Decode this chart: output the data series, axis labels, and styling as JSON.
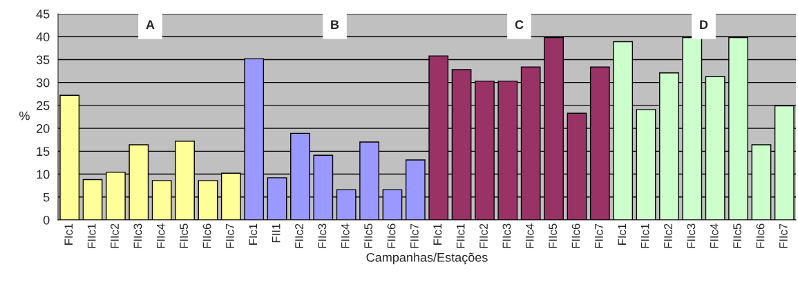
{
  "chart_data": {
    "type": "bar",
    "ylabel": "%",
    "xlabel": "Campanhas/Estações",
    "categories": [
      "FIc1",
      "FIIc1",
      "FIIc2",
      "FIIc3",
      "FIIc4",
      "FIIc5",
      "FIIc6",
      "FIIc7",
      "FIc1",
      "FII1",
      "FIIc2",
      "FIIc3",
      "FIIc4",
      "FIIc5",
      "FIIc6",
      "FIIc7",
      "FIc1",
      "FIIc1",
      "FIIc2",
      "FIIc3",
      "FIIc4",
      "FIIc5",
      "FIIc6",
      "FIIc7",
      "FIc1",
      "FIIc1",
      "FIIc2",
      "FIIc3",
      "FIIc4",
      "FIIc5",
      "FIIc6",
      "FIIc7"
    ],
    "values": [
      27.2,
      8.8,
      10.4,
      16.4,
      8.6,
      17.2,
      8.6,
      10.2,
      35.2,
      9.2,
      18.9,
      14.1,
      6.6,
      17.0,
      6.6,
      13.1,
      35.8,
      32.8,
      30.3,
      30.3,
      33.4,
      39.8,
      23.3,
      33.4,
      38.9,
      24.1,
      32.1,
      39.8,
      31.3,
      39.8,
      16.4,
      24.9
    ],
    "colors": [
      "#ffff99",
      "#ffff99",
      "#ffff99",
      "#ffff99",
      "#ffff99",
      "#ffff99",
      "#ffff99",
      "#ffff99",
      "#9999ff",
      "#9999ff",
      "#9999ff",
      "#9999ff",
      "#9999ff",
      "#9999ff",
      "#9999ff",
      "#9999ff",
      "#993366",
      "#993366",
      "#993366",
      "#993366",
      "#993366",
      "#993366",
      "#993366",
      "#993366",
      "#ccffcc",
      "#ccffcc",
      "#ccffcc",
      "#ccffcc",
      "#ccffcc",
      "#ccffcc",
      "#ccffcc",
      "#ccffcc"
    ],
    "annotations": [
      "A",
      "B",
      "C",
      "D"
    ],
    "ylim": [
      0,
      45
    ],
    "yticks": [
      0,
      5,
      10,
      15,
      20,
      25,
      30,
      35,
      40,
      45
    ],
    "grid": "y",
    "legend": false
  }
}
